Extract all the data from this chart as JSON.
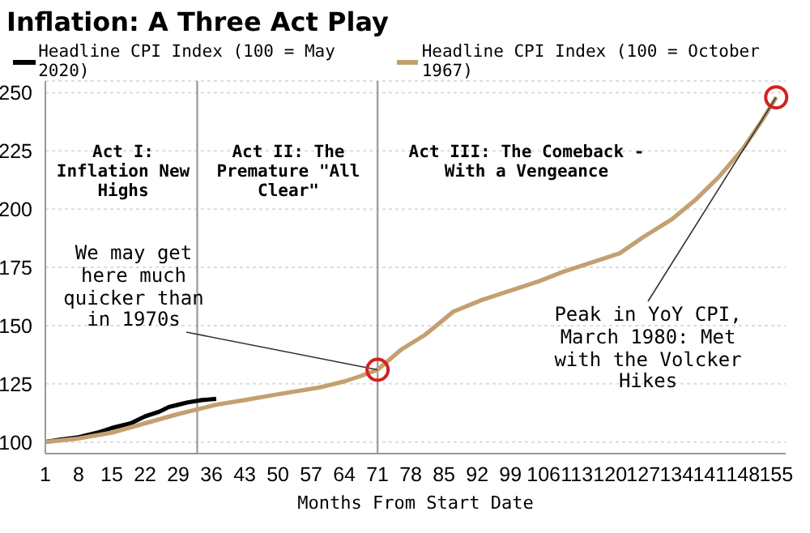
{
  "chart_data": {
    "type": "line",
    "title": "Inflation: A Three Act Play",
    "xlabel": "Months From Start Date",
    "series": [
      {
        "name": "Headline CPI Index (100 = May 2020)",
        "color": "#000000",
        "x": [
          1,
          4,
          8,
          12,
          15,
          19,
          22,
          25,
          27,
          29,
          31,
          34,
          37
        ],
        "values": [
          100,
          101,
          102,
          104,
          106,
          108,
          111,
          113,
          115,
          116,
          117,
          118,
          118.5
        ]
      },
      {
        "name": "Headline CPI Index (100 = October 1967)",
        "color": "#c4a070",
        "x": [
          1,
          8,
          15,
          22,
          29,
          37,
          43,
          50,
          59,
          64,
          67,
          71,
          76,
          81,
          87,
          93,
          99,
          105,
          110,
          116,
          122,
          127,
          133,
          138,
          143,
          148,
          152,
          155
        ],
        "values": [
          100,
          101.5,
          104,
          108,
          112,
          116,
          118,
          120.5,
          123.5,
          126,
          128,
          131,
          139.7,
          146,
          156,
          161,
          165,
          169,
          173,
          177,
          181,
          188,
          195.6,
          204,
          214,
          226,
          238,
          248
        ]
      }
    ],
    "xlim": [
      1,
      157
    ],
    "xticks": [
      1,
      8,
      15,
      22,
      29,
      36,
      43,
      50,
      57,
      64,
      71,
      78,
      85,
      92,
      99,
      106,
      113,
      120,
      127,
      134,
      141,
      148,
      155
    ],
    "ylim": [
      95,
      255
    ],
    "yticks": [
      100,
      125,
      150,
      175,
      200,
      225,
      250
    ],
    "grid": "y",
    "legend": "top left",
    "marker": "none",
    "line_style": "solid",
    "ref_lines": [
      {
        "axis": "x",
        "value": 33,
        "color": "#a0a0a0"
      },
      {
        "axis": "x",
        "value": 71,
        "color": "#a0a0a0"
      }
    ],
    "annotations": [
      "Act I: Inflation New Highs",
      "Act II: The Premature \"All Clear\"",
      "Act III: The Comeback - With a Vengeance",
      {
        "text": "We may get here much quicker than in 1970s",
        "x": 71,
        "y": 131
      },
      {
        "text": "Peak in YoY CPI, March 1980: Met with the Volcker Hikes",
        "x": 155,
        "y": 248
      }
    ]
  }
}
